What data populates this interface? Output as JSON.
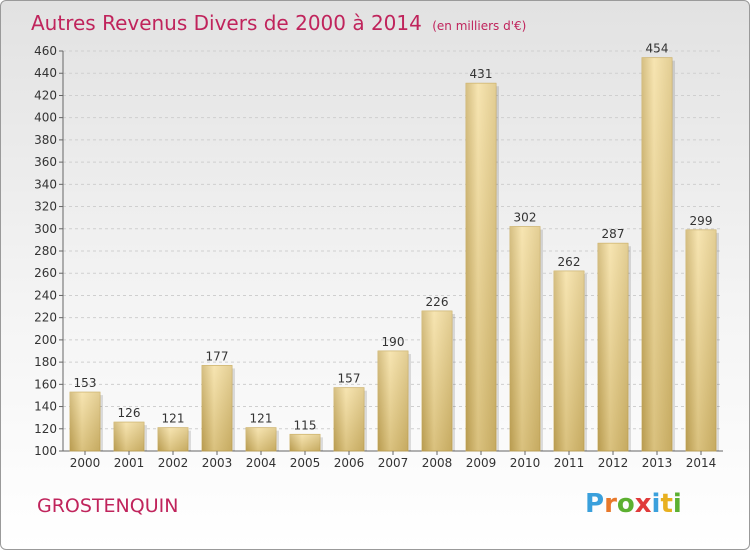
{
  "title": "Autres Revenus Divers de 2000 à 2014",
  "subtitle": "(en milliers d'€)",
  "commune": "GROSTENQUIN",
  "brand": {
    "letters": [
      {
        "char": "P",
        "color": "#3aa0dc"
      },
      {
        "char": "r",
        "color": "#e8782a"
      },
      {
        "char": "o",
        "color": "#5cb030"
      },
      {
        "char": "x",
        "color": "#e03a3a"
      },
      {
        "char": "i",
        "color": "#3aa0dc"
      },
      {
        "char": "t",
        "color": "#e8b020"
      },
      {
        "char": "i",
        "color": "#5cb030"
      }
    ]
  },
  "chart_data": {
    "type": "bar",
    "title": "Autres Revenus Divers de 2000 à 2014",
    "subtitle": "(en milliers d'€)",
    "categories": [
      "2000",
      "2001",
      "2002",
      "2003",
      "2004",
      "2005",
      "2006",
      "2007",
      "2008",
      "2009",
      "2010",
      "2011",
      "2012",
      "2013",
      "2014"
    ],
    "values": [
      153,
      126,
      121,
      177,
      121,
      115,
      157,
      190,
      226,
      431,
      302,
      262,
      287,
      454,
      299
    ],
    "ylim": [
      100,
      460
    ],
    "yticks": [
      100,
      120,
      140,
      160,
      180,
      200,
      220,
      240,
      260,
      280,
      300,
      320,
      340,
      360,
      380,
      400,
      420,
      440,
      460
    ],
    "grid": true,
    "bar_color": "#e9cf86"
  }
}
